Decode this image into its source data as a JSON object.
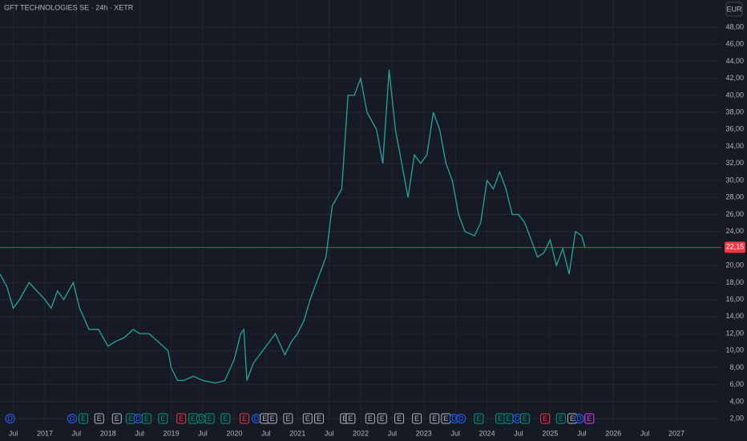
{
  "chart_data": {
    "type": "line",
    "title": "GFT TECHNOLOGIES SE · 24h · XETR",
    "currency": "EUR",
    "grid": true,
    "xlim": [
      2016.29,
      2027.71
    ],
    "ylim": [
      1.27,
      51.2
    ],
    "xticks": [
      {
        "value": 2016.5,
        "label": "Jul"
      },
      2017,
      {
        "value": 2017.5,
        "label": "Jul"
      },
      2018,
      {
        "value": 2018.5,
        "label": "Jul"
      },
      2019,
      {
        "value": 2019.5,
        "label": "Jul"
      },
      2020,
      {
        "value": 2020.5,
        "label": "Jul"
      },
      2021,
      {
        "value": 2021.5,
        "label": "Jul"
      },
      2022,
      {
        "value": 2022.5,
        "label": "Jul"
      },
      2023,
      {
        "value": 2023.5,
        "label": "Jul"
      },
      2024,
      {
        "value": 2024.5,
        "label": "Jul"
      },
      2025,
      {
        "value": 2025.5,
        "label": "Jul"
      },
      2026,
      {
        "value": 2026.5,
        "label": "Jul"
      },
      2027
    ],
    "yticks": [
      {
        "value": 2,
        "label": "2,00"
      },
      {
        "value": 4,
        "label": "4,00"
      },
      {
        "value": 6,
        "label": "6,00"
      },
      {
        "value": 8,
        "label": "8,00"
      },
      {
        "value": 10,
        "label": "10,00"
      },
      {
        "value": 12,
        "label": "12,00"
      },
      {
        "value": 14,
        "label": "14,00"
      },
      {
        "value": 16,
        "label": "16,00"
      },
      {
        "value": 18,
        "label": "18,00"
      },
      {
        "value": 20,
        "label": "20,00"
      },
      {
        "value": 22,
        "label": "22,00"
      },
      {
        "value": 24,
        "label": "24,00"
      },
      {
        "value": 26,
        "label": "26,00"
      },
      {
        "value": 28,
        "label": "28,00"
      },
      {
        "value": 30,
        "label": "30,00"
      },
      {
        "value": 32,
        "label": "32,00"
      },
      {
        "value": 34,
        "label": "34,00"
      },
      {
        "value": 36,
        "label": "36,00"
      },
      {
        "value": 38,
        "label": "38,00"
      },
      {
        "value": 40,
        "label": "40,00"
      },
      {
        "value": 42,
        "label": "42,00"
      },
      {
        "value": 44,
        "label": "44,00"
      },
      {
        "value": 46,
        "label": "46,00"
      },
      {
        "value": 48,
        "label": "48,00"
      }
    ],
    "series": [
      {
        "name": "GFT",
        "color": "#26a69a",
        "x": [
          2016.29,
          2016.4,
          2016.5,
          2016.6,
          2016.75,
          2017.0,
          2017.1,
          2017.2,
          2017.3,
          2017.45,
          2017.55,
          2017.7,
          2017.85,
          2018.0,
          2018.1,
          2018.25,
          2018.4,
          2018.5,
          2018.65,
          2018.8,
          2018.95,
          2019.0,
          2019.1,
          2019.2,
          2019.35,
          2019.5,
          2019.7,
          2019.85,
          2020.0,
          2020.1,
          2020.15,
          2020.2,
          2020.3,
          2020.4,
          2020.55,
          2020.65,
          2020.8,
          2020.9,
          2021.0,
          2021.1,
          2021.2,
          2021.3,
          2021.45,
          2021.55,
          2021.7,
          2021.8,
          2021.9,
          2022.0,
          2022.1,
          2022.25,
          2022.35,
          2022.45,
          2022.55,
          2022.65,
          2022.75,
          2022.85,
          2022.95,
          2023.05,
          2023.15,
          2023.25,
          2023.35,
          2023.45,
          2023.55,
          2023.65,
          2023.8,
          2023.9,
          2024.0,
          2024.1,
          2024.2,
          2024.3,
          2024.4,
          2024.5,
          2024.6,
          2024.7,
          2024.8,
          2024.9,
          2025.0,
          2025.1,
          2025.2,
          2025.3,
          2025.4,
          2025.5,
          2025.55
        ],
        "values": [
          19,
          17.5,
          15,
          16,
          18,
          16,
          15,
          17,
          16,
          18,
          15,
          12.5,
          12.5,
          10.5,
          11,
          11.5,
          12.5,
          12,
          12,
          11,
          10,
          8,
          6.5,
          6.5,
          7,
          6.5,
          6.2,
          6.5,
          9,
          12,
          12.5,
          6.5,
          8.5,
          9.5,
          11,
          12,
          9.5,
          11,
          12,
          13.5,
          16,
          18,
          21,
          27,
          29,
          40,
          40,
          42,
          38,
          36,
          32,
          43,
          36,
          32,
          28,
          33,
          32,
          33,
          38,
          36,
          32,
          30,
          26,
          24,
          23.5,
          25,
          30,
          29,
          31,
          29,
          26,
          26,
          25,
          23,
          21,
          21.5,
          23,
          20,
          22,
          19,
          24,
          23.5,
          22.15
        ]
      }
    ],
    "last_price": {
      "value": 22.15,
      "label": "22,15",
      "color": "#f23645"
    },
    "events": [
      {
        "x": 2016.45,
        "label": "D",
        "color": "#2962ff"
      },
      {
        "x": 2017.43,
        "label": "D",
        "color": "#2962ff"
      },
      {
        "x": 2017.61,
        "label": "E",
        "color": "#089981"
      },
      {
        "x": 2017.86,
        "label": "E",
        "color": "#b2b5be"
      },
      {
        "x": 2018.14,
        "label": "E",
        "color": "#b2b5be"
      },
      {
        "x": 2018.36,
        "label": "E",
        "color": "#089981"
      },
      {
        "x": 2018.48,
        "label": "D",
        "color": "#2962ff"
      },
      {
        "x": 2018.61,
        "label": "E",
        "color": "#089981"
      },
      {
        "x": 2018.87,
        "label": "E",
        "color": "#089981"
      },
      {
        "x": 2019.16,
        "label": "E",
        "color": "#f23645"
      },
      {
        "x": 2019.35,
        "label": "E",
        "color": "#089981"
      },
      {
        "x": 2019.47,
        "label": "D",
        "color": "#089981"
      },
      {
        "x": 2019.61,
        "label": "E",
        "color": "#089981"
      },
      {
        "x": 2019.86,
        "label": "E",
        "color": "#089981"
      },
      {
        "x": 2020.16,
        "label": "E",
        "color": "#f23645"
      },
      {
        "x": 2020.35,
        "label": "D",
        "color": "#2962ff"
      },
      {
        "x": 2020.48,
        "label": "E",
        "color": "#b2b5be"
      },
      {
        "x": 2020.6,
        "label": "E",
        "color": "#b2b5be"
      },
      {
        "x": 2020.85,
        "label": "E",
        "color": "#b2b5be"
      },
      {
        "x": 2021.16,
        "label": "E",
        "color": "#b2b5be"
      },
      {
        "x": 2021.34,
        "label": "E",
        "color": "#b2b5be"
      },
      {
        "x": 2021.75,
        "label": "E",
        "color": "#b2b5be"
      },
      {
        "x": 2021.84,
        "label": "E",
        "color": "#b2b5be"
      },
      {
        "x": 2022.15,
        "label": "E",
        "color": "#b2b5be"
      },
      {
        "x": 2022.34,
        "label": "E",
        "color": "#b2b5be"
      },
      {
        "x": 2022.61,
        "label": "E",
        "color": "#b2b5be"
      },
      {
        "x": 2022.89,
        "label": "E",
        "color": "#b2b5be"
      },
      {
        "x": 2023.17,
        "label": "E",
        "color": "#b2b5be"
      },
      {
        "x": 2023.35,
        "label": "E",
        "color": "#b2b5be"
      },
      {
        "x": 2023.48,
        "label": "D",
        "color": "#2962ff"
      },
      {
        "x": 2023.59,
        "label": "D",
        "color": "#2962ff"
      },
      {
        "x": 2023.87,
        "label": "E",
        "color": "#089981"
      },
      {
        "x": 2024.21,
        "label": "E",
        "color": "#089981"
      },
      {
        "x": 2024.34,
        "label": "E",
        "color": "#089981"
      },
      {
        "x": 2024.48,
        "label": "D",
        "color": "#2962ff"
      },
      {
        "x": 2024.6,
        "label": "E",
        "color": "#089981"
      },
      {
        "x": 2024.92,
        "label": "E",
        "color": "#f23645"
      },
      {
        "x": 2025.17,
        "label": "E",
        "color": "#089981"
      },
      {
        "x": 2025.35,
        "label": "E",
        "color": "#b2b5be"
      },
      {
        "x": 2025.46,
        "label": "D",
        "color": "#2962ff"
      },
      {
        "x": 2025.62,
        "label": "E",
        "color": "#e040fb"
      }
    ]
  }
}
